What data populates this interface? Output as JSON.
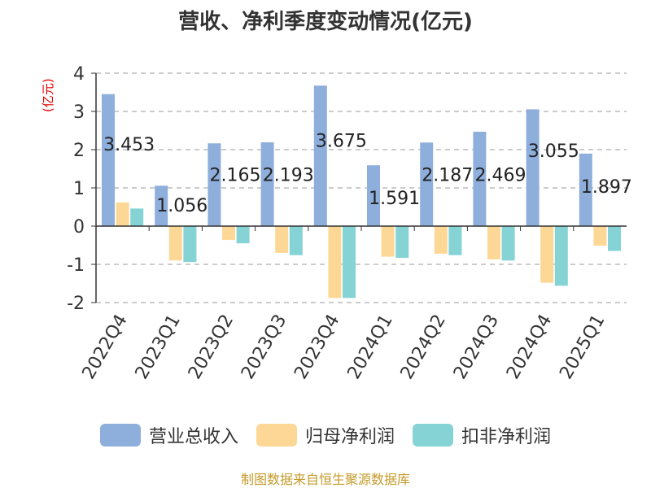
{
  "header": {
    "title": "营收、净利季度变动情况(亿元)"
  },
  "source": "制图数据来自恒生聚源数据库",
  "colors": {
    "revenue": "#8eaedb",
    "net_profit": "#fdd795",
    "deducted_net_profit": "#86d3d6",
    "unit_label": "#e60000",
    "grid": "#bbbbbb",
    "axis": "#333333"
  },
  "chart_data": {
    "type": "bar",
    "title": "营收、净利季度变动情况(亿元)",
    "ylabel": "(亿元)",
    "xlabel": "",
    "ylim": [
      -2,
      4
    ],
    "yticks": [
      "4",
      "3",
      "2",
      "1",
      "0",
      "-1",
      "-2"
    ],
    "ytick_values": [
      4,
      3,
      2,
      1,
      0,
      -1,
      -2
    ],
    "grid": true,
    "legend_position": "bottom",
    "categories": [
      "2022Q4",
      "2023Q1",
      "2023Q2",
      "2023Q3",
      "2023Q4",
      "2024Q1",
      "2024Q2",
      "2024Q3",
      "2024Q4",
      "2025Q1"
    ],
    "series": [
      {
        "name": "营业总收入",
        "color": "#8eaedb",
        "values": [
          3.453,
          1.056,
          2.165,
          2.193,
          3.675,
          1.591,
          2.187,
          2.469,
          3.055,
          1.897
        ],
        "labels": [
          "3.453",
          "1.056",
          "2.165",
          "2.193",
          "3.675",
          "1.591",
          "2.187",
          "2.469",
          "3.055",
          "1.897"
        ]
      },
      {
        "name": "归母净利润",
        "color": "#fdd795",
        "values": [
          0.62,
          -0.9,
          -0.36,
          -0.7,
          -1.88,
          -0.8,
          -0.72,
          -0.87,
          -1.48,
          -0.51
        ]
      },
      {
        "name": "扣非净利润",
        "color": "#86d3d6",
        "values": [
          0.46,
          -0.94,
          -0.45,
          -0.76,
          -1.88,
          -0.83,
          -0.76,
          -0.9,
          -1.56,
          -0.65
        ]
      }
    ]
  }
}
